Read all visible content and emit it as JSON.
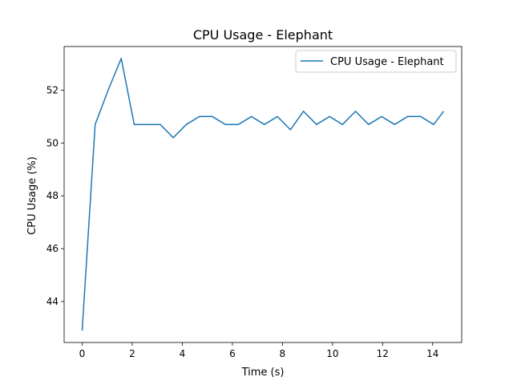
{
  "chart_data": {
    "type": "line",
    "title": "CPU Usage - Elephant",
    "xlabel": "Time (s)",
    "ylabel": "CPU Usage (%)",
    "xlim": [
      -0.72,
      15.16
    ],
    "ylim": [
      42.45,
      53.65
    ],
    "xticks": [
      0,
      2,
      4,
      6,
      8,
      10,
      12,
      14
    ],
    "yticks": [
      44,
      46,
      48,
      50,
      52
    ],
    "grid": false,
    "legend_position": "top-right",
    "series": [
      {
        "name": "CPU Usage - Elephant",
        "color": "#1f77b4",
        "x": [
          0,
          0.52,
          1.04,
          1.56,
          2.08,
          2.6,
          3.12,
          3.64,
          4.16,
          4.68,
          5.2,
          5.72,
          6.24,
          6.76,
          7.28,
          7.8,
          8.32,
          8.84,
          9.36,
          9.88,
          10.4,
          10.92,
          11.44,
          11.96,
          12.48,
          13.0,
          13.52,
          14.04,
          14.44
        ],
        "values": [
          42.9,
          50.7,
          52.0,
          53.2,
          50.7,
          50.7,
          50.7,
          50.2,
          50.7,
          51.0,
          51.0,
          50.7,
          50.7,
          51.0,
          50.7,
          51.0,
          50.5,
          51.2,
          50.7,
          51.0,
          50.7,
          51.2,
          50.7,
          51.0,
          50.7,
          51.0,
          51.0,
          50.7,
          51.2
        ]
      }
    ]
  }
}
